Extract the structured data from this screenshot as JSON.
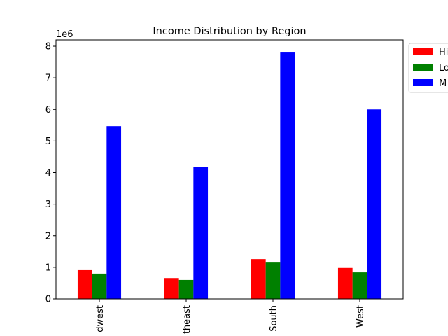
{
  "chart_data": {
    "type": "bar",
    "title": "Income Distribution by Region",
    "categories": [
      "Midwest",
      "Northeast",
      "South",
      "West"
    ],
    "category_labels_visible": [
      "dwest",
      "theast",
      "South",
      "West"
    ],
    "series": [
      {
        "name": "High",
        "legend_label_visible": "Hi",
        "color": "#ff0000",
        "values": [
          910000,
          660000,
          1260000,
          980000
        ]
      },
      {
        "name": "Low",
        "legend_label_visible": "Lo",
        "color": "#008000",
        "values": [
          800000,
          600000,
          1150000,
          840000
        ]
      },
      {
        "name": "Middle",
        "legend_label_visible": "M",
        "color": "#0000ff",
        "values": [
          5470000,
          4170000,
          7800000,
          6000000
        ]
      }
    ],
    "y_ticks": [
      0,
      1,
      2,
      3,
      4,
      5,
      6,
      7,
      8
    ],
    "y_multiplier_label": "1e6",
    "ylim": [
      0,
      8200000
    ],
    "xlabel": "",
    "ylabel": "",
    "grid": false,
    "legend_position": "outside-top-right"
  }
}
